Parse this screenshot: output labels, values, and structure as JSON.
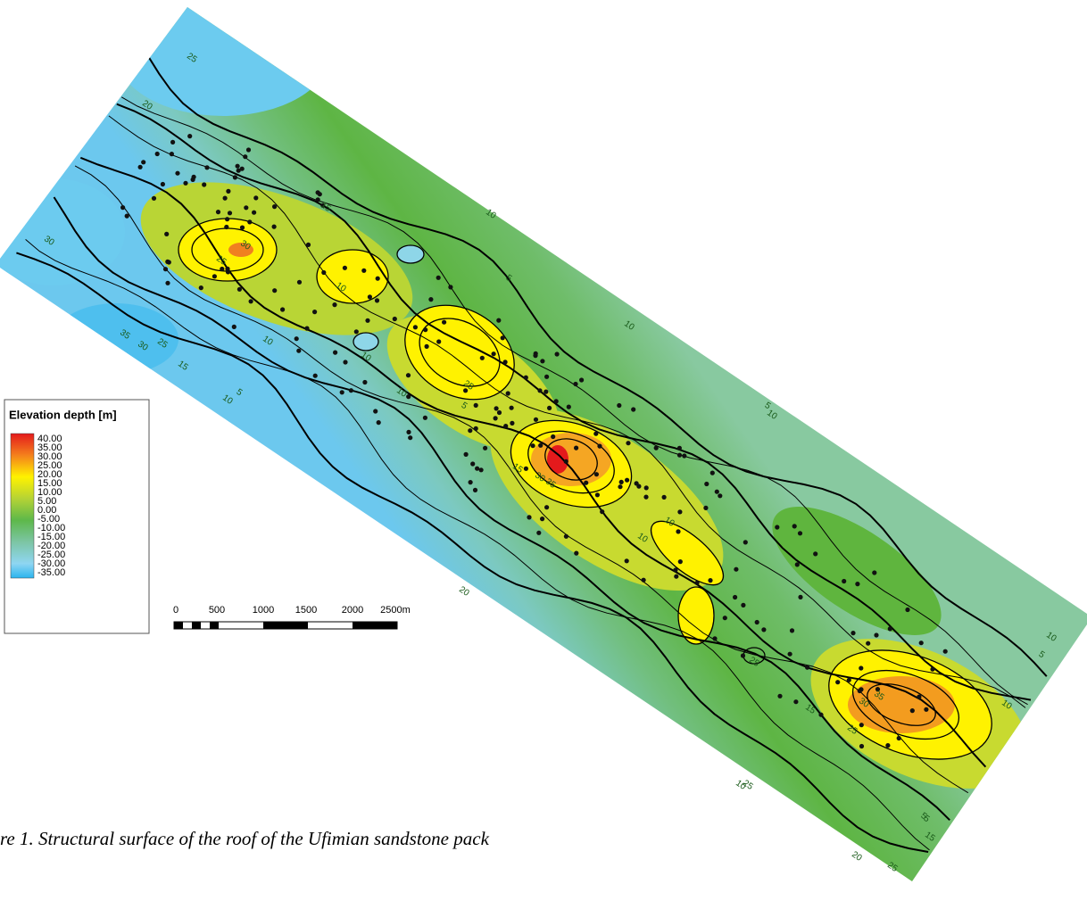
{
  "legend": {
    "title": "Elevation depth [m]",
    "labels": [
      "40.00",
      "35.00",
      "30.00",
      "25.00",
      "20.00",
      "15.00",
      "10.00",
      "5.00",
      "0.00",
      "-5.00",
      "-10.00",
      "-15.00",
      "-20.00",
      "-25.00",
      "-30.00",
      "-35.00"
    ]
  },
  "scale_bar": {
    "labels": [
      "0",
      "500",
      "1000",
      "1500",
      "2000",
      "2500m"
    ]
  },
  "contour_labels": [
    "25",
    "20",
    "30",
    "35",
    "30",
    "25",
    "15",
    "10",
    "5",
    "10",
    "15",
    "30",
    "25",
    "10",
    "10",
    "5",
    "10",
    "10",
    "25",
    "30",
    "35",
    "15",
    "5",
    "10",
    "10",
    "10",
    "10",
    "5",
    "20",
    "10",
    "5",
    "10",
    "15",
    "25",
    "30",
    "35",
    "25",
    "10",
    "5",
    "25",
    "20",
    "15",
    "5",
    "25"
  ],
  "caption": "re 1. Structural surface of the roof of the Ufimian sandstone pack"
}
